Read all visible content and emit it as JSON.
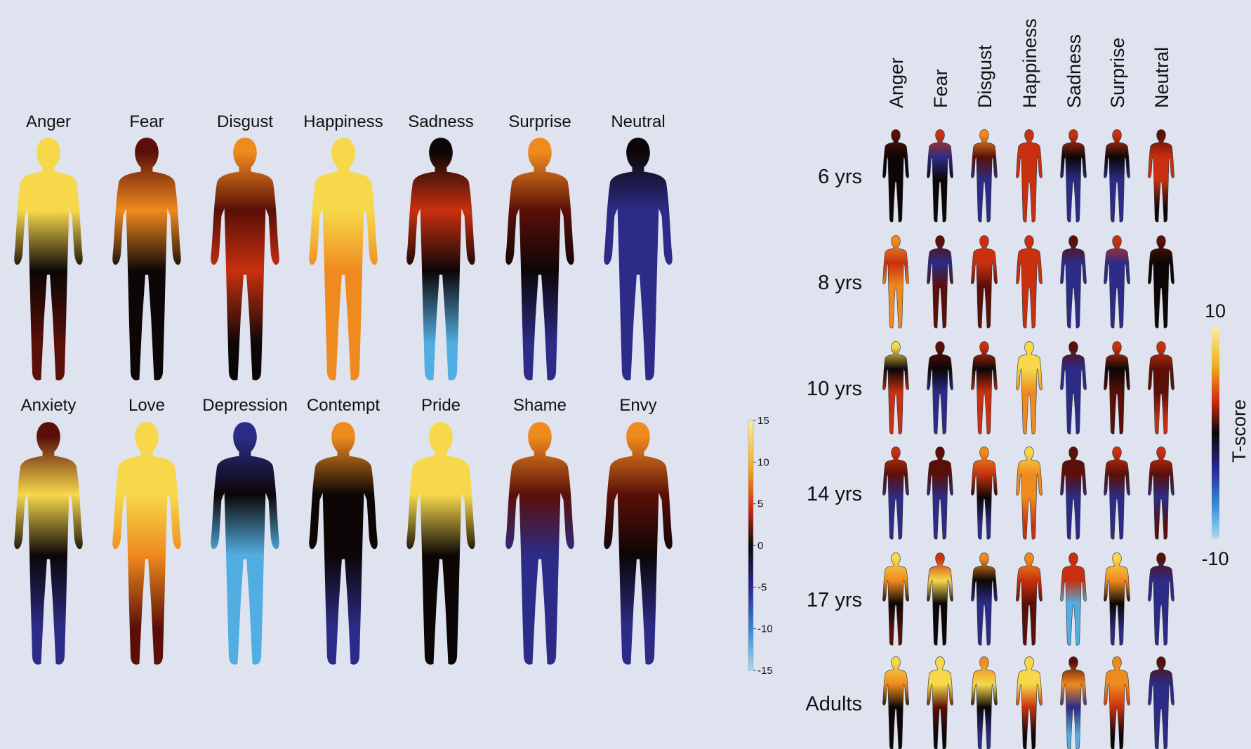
{
  "left": {
    "row1": [
      "Anger",
      "Fear",
      "Disgust",
      "Happiness",
      "Sadness",
      "Surprise",
      "Neutral"
    ],
    "row2": [
      "Anxiety",
      "Love",
      "Depression",
      "Contempt",
      "Pride",
      "Shame",
      "Envy"
    ],
    "colorbar_ticks": [
      15,
      10,
      5,
      0,
      -5,
      -10,
      -15
    ]
  },
  "right": {
    "columns": [
      "Anger",
      "Fear",
      "Disgust",
      "Happiness",
      "Sadness",
      "Surprise",
      "Neutral"
    ],
    "rows": [
      "6 yrs",
      "8 yrs",
      "10 yrs",
      "14 yrs",
      "17 yrs",
      "Adults"
    ],
    "colorbar": {
      "max": 10,
      "min": -10,
      "label": "T-score"
    }
  }
}
